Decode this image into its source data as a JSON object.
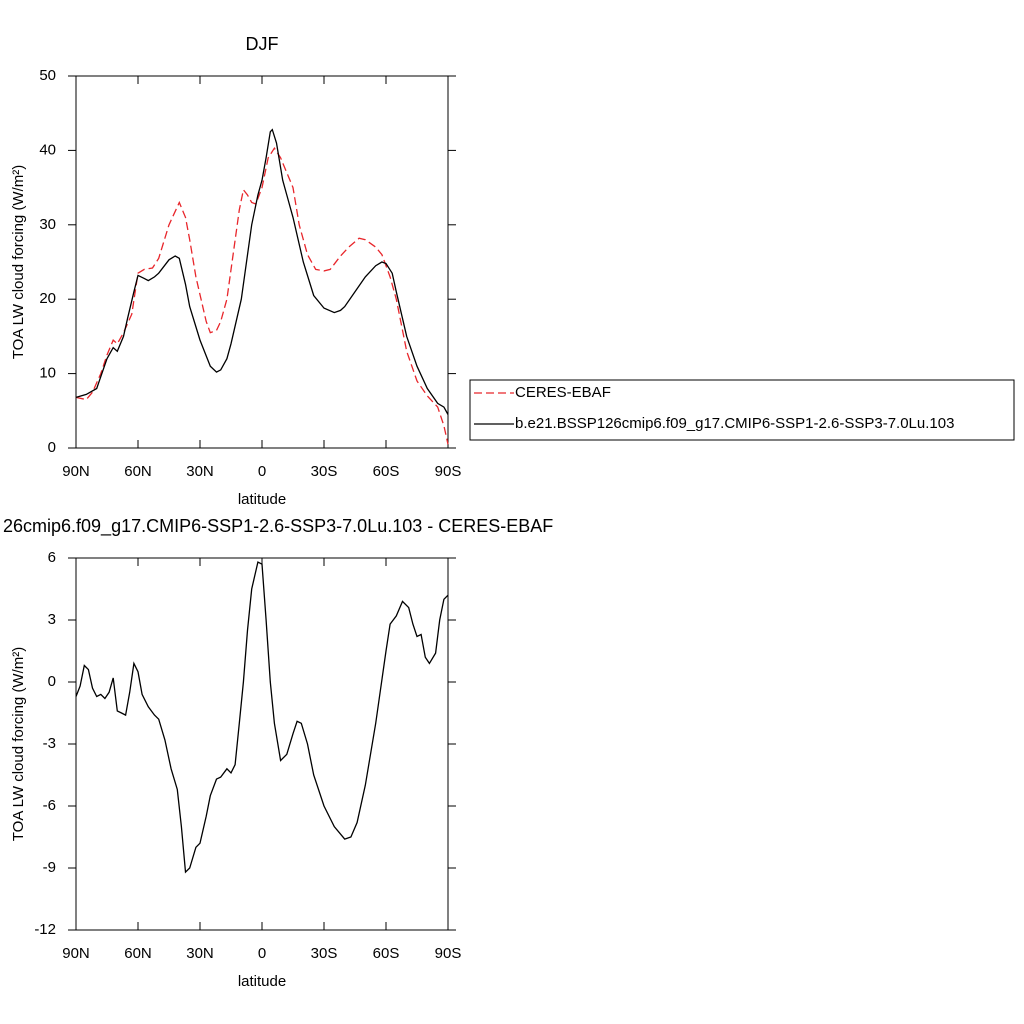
{
  "chart_data": [
    {
      "type": "line",
      "title": "DJF",
      "xlabel": "latitude",
      "ylabel": "TOA LW cloud forcing (W/m²)",
      "xlim": [
        90,
        -90
      ],
      "xticks": [
        {
          "value": 90,
          "label": "90N"
        },
        {
          "value": 60,
          "label": "60N"
        },
        {
          "value": 30,
          "label": "30N"
        },
        0,
        {
          "value": -30,
          "label": "30S"
        },
        {
          "value": -60,
          "label": "60S"
        },
        {
          "value": -90,
          "label": "90S"
        }
      ],
      "ylim": [
        0,
        50
      ],
      "yticks": [
        0,
        10,
        20,
        30,
        40,
        50
      ],
      "series": [
        {
          "name": "CERES-EBAF",
          "color": "#e8262b",
          "dash": true,
          "x": [
            90,
            85,
            82,
            78,
            75,
            72,
            70,
            67,
            63,
            60,
            57,
            53,
            50,
            45,
            40,
            37,
            35,
            32,
            27,
            25,
            22,
            20,
            17,
            14,
            11,
            9,
            7,
            5,
            3,
            0,
            -3,
            -6,
            -9,
            -12,
            -15,
            -18,
            -22,
            -26,
            -30,
            -33,
            -38,
            -42,
            -47,
            -50,
            -55,
            -58,
            -62,
            -65,
            -70,
            -75,
            -80,
            -85,
            -88,
            -90
          ],
          "values": [
            6.8,
            6.5,
            7.5,
            10,
            12.5,
            14.5,
            14,
            15.5,
            18,
            23.5,
            24,
            24.2,
            25.5,
            30,
            33,
            31,
            28,
            23,
            17,
            15.5,
            15.8,
            17,
            20,
            26,
            32,
            34.7,
            34,
            33,
            32.8,
            35,
            39,
            40.3,
            39,
            37,
            35,
            30,
            26,
            24,
            23.8,
            24,
            25.8,
            27,
            28.2,
            28,
            27,
            26,
            23,
            20,
            13,
            9,
            7,
            5.5,
            3,
            0.5
          ]
        },
        {
          "name": "b.e21.BSSP126cmip6.f09_g17.CMIP6-SSP1-2.6-SSP3-7.0Lu.103",
          "color": "#000000",
          "dash": false,
          "x": [
            90,
            85,
            80,
            75,
            72,
            70,
            67,
            65,
            62,
            60,
            57,
            55,
            52,
            50,
            45,
            42,
            40,
            37,
            35,
            30,
            25,
            22,
            20,
            17,
            15,
            10,
            5,
            2,
            0,
            -2,
            -4,
            -5,
            -7,
            -10,
            -12,
            -15,
            -20,
            -25,
            -30,
            -35,
            -38,
            -40,
            -45,
            -50,
            -55,
            -58,
            -60,
            -63,
            -65,
            -70,
            -75,
            -80,
            -85,
            -88,
            -90
          ],
          "values": [
            6.8,
            7.2,
            8,
            12,
            13.5,
            13,
            15,
            17.5,
            21,
            23.2,
            22.8,
            22.5,
            23,
            23.5,
            25.3,
            25.8,
            25.5,
            22,
            19,
            14.5,
            11,
            10.2,
            10.5,
            12,
            14,
            20,
            30,
            34,
            36,
            39,
            42.5,
            42.8,
            41,
            36,
            34,
            31,
            25,
            20.5,
            18.8,
            18.2,
            18.5,
            19,
            21,
            23,
            24.5,
            25,
            24.8,
            23.5,
            21,
            15,
            11,
            8,
            6,
            5.5,
            4.5
          ]
        }
      ]
    },
    {
      "type": "line",
      "title": "26cmip6.f09_g17.CMIP6-SSP1-2.6-SSP3-7.0Lu.103 - CERES-EBAF",
      "xlabel": "latitude",
      "ylabel": "TOA LW cloud forcing (W/m²)",
      "xlim": [
        90,
        -90
      ],
      "xticks": [
        {
          "value": 90,
          "label": "90N"
        },
        {
          "value": 60,
          "label": "60N"
        },
        {
          "value": 30,
          "label": "30N"
        },
        0,
        {
          "value": -30,
          "label": "30S"
        },
        {
          "value": -60,
          "label": "60S"
        },
        {
          "value": -90,
          "label": "90S"
        }
      ],
      "ylim": [
        -12,
        6
      ],
      "yticks": [
        -12,
        -9,
        -6,
        -3,
        0,
        3,
        6
      ],
      "series": [
        {
          "color": "#000000",
          "dash": false,
          "x": [
            90,
            88,
            86,
            84,
            82,
            80,
            78,
            76,
            74,
            72,
            70,
            68,
            66,
            64,
            62,
            60,
            58,
            55,
            52,
            50,
            47,
            44,
            41,
            39,
            37,
            35,
            32,
            30,
            27,
            25,
            22,
            20,
            17,
            15,
            13,
            11,
            9,
            7,
            5,
            2,
            0,
            -2,
            -4,
            -6,
            -9,
            -12,
            -15,
            -17,
            -19,
            -22,
            -25,
            -30,
            -35,
            -40,
            -43,
            -46,
            -50,
            -55,
            -60,
            -62,
            -65,
            -68,
            -71,
            -73,
            -75,
            -77,
            -79,
            -81,
            -84,
            -86,
            -88,
            -90
          ],
          "values": [
            -0.7,
            -0.2,
            0.8,
            0.6,
            -0.3,
            -0.7,
            -0.6,
            -0.8,
            -0.5,
            0.2,
            -1.4,
            -1.5,
            -1.6,
            -0.5,
            0.9,
            0.5,
            -0.6,
            -1.2,
            -1.6,
            -1.8,
            -2.8,
            -4.2,
            -5.2,
            -7,
            -9.2,
            -9,
            -8,
            -7.8,
            -6.5,
            -5.5,
            -4.7,
            -4.6,
            -4.2,
            -4.4,
            -4,
            -2,
            0,
            2.5,
            4.5,
            5.8,
            5.7,
            3,
            0,
            -2,
            -3.8,
            -3.5,
            -2.5,
            -1.9,
            -2,
            -3,
            -4.5,
            -6,
            -7,
            -7.6,
            -7.5,
            -6.8,
            -5,
            -2,
            1.5,
            2.8,
            3.2,
            3.9,
            3.6,
            2.8,
            2.2,
            2.3,
            1.2,
            0.9,
            1.4,
            3,
            4,
            4.2
          ]
        }
      ]
    }
  ]
}
